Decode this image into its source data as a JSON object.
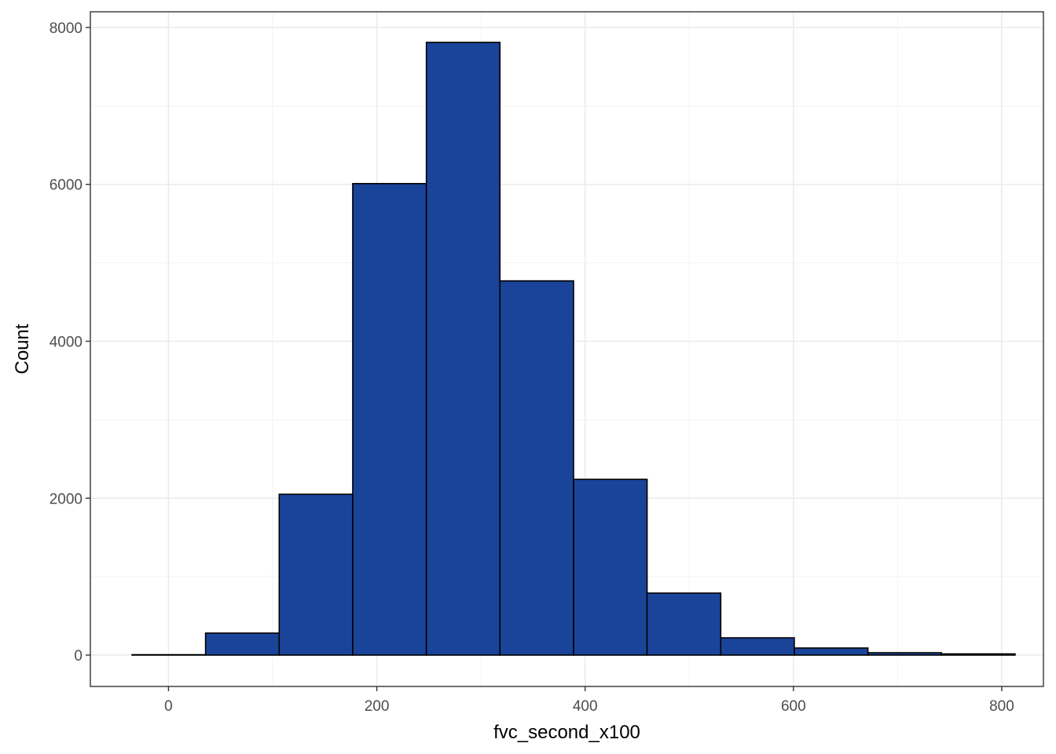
{
  "chart_data": {
    "type": "bar",
    "subtype": "histogram",
    "xlabel": "fvc_second_x100",
    "ylabel": "Count",
    "xlim": [
      -75,
      840
    ],
    "ylim": [
      -400,
      8200
    ],
    "x_ticks": [
      0,
      200,
      400,
      600,
      800
    ],
    "x_minor_ticks": [
      100,
      300,
      500,
      700
    ],
    "y_ticks": [
      0,
      2000,
      4000,
      6000,
      8000
    ],
    "y_minor_ticks": [
      1000,
      3000,
      5000,
      7000
    ],
    "bin_width": 70.65,
    "bins": [
      {
        "x0": -35.0,
        "x1": 35.6,
        "count": 5
      },
      {
        "x0": 35.6,
        "x1": 106.3,
        "count": 280
      },
      {
        "x0": 106.3,
        "x1": 176.9,
        "count": 2050
      },
      {
        "x0": 176.9,
        "x1": 247.6,
        "count": 6010
      },
      {
        "x0": 247.6,
        "x1": 318.2,
        "count": 7810
      },
      {
        "x0": 318.2,
        "x1": 388.9,
        "count": 4770
      },
      {
        "x0": 388.9,
        "x1": 459.5,
        "count": 2240
      },
      {
        "x0": 459.5,
        "x1": 530.2,
        "count": 790
      },
      {
        "x0": 530.2,
        "x1": 600.8,
        "count": 220
      },
      {
        "x0": 600.8,
        "x1": 671.5,
        "count": 90
      },
      {
        "x0": 671.5,
        "x1": 742.1,
        "count": 30
      },
      {
        "x0": 742.1,
        "x1": 812.8,
        "count": 15
      }
    ],
    "fill_color": "#1a4499",
    "stroke_color": "#000000",
    "grid": true,
    "theme": "bw"
  }
}
